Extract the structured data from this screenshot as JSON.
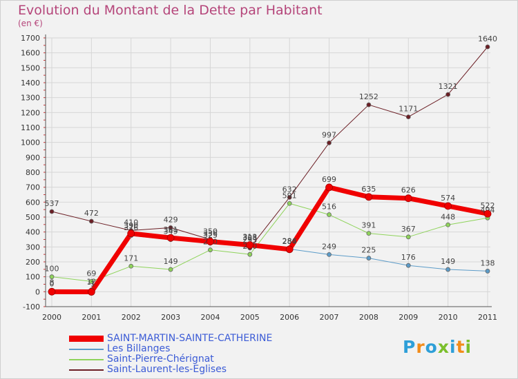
{
  "header": {
    "title": "Evolution du Montant de la Dette par Habitant",
    "unit": "(en €)"
  },
  "logo": {
    "text": "Proxiti",
    "letters": [
      "P",
      "r",
      "o",
      "x",
      "i",
      "t",
      "i"
    ],
    "colors": [
      "#2e9fd8",
      "#f28c1a",
      "#2e9fd8",
      "#7bbf2b",
      "#2e9fd8",
      "#f28c1a",
      "#7bbf2b"
    ]
  },
  "chart_data": {
    "type": "line",
    "title": "Evolution du Montant de la Dette par Habitant",
    "ylabel": "(en €)",
    "xlabel": "",
    "x": [
      "2000",
      "2001",
      "2002",
      "2003",
      "2004",
      "2005",
      "2006",
      "2007",
      "2008",
      "2009",
      "2010",
      "2011"
    ],
    "ylim": [
      -100,
      1700
    ],
    "yticks": [
      -100,
      0,
      100,
      200,
      300,
      400,
      500,
      600,
      700,
      800,
      900,
      1000,
      1100,
      1200,
      1300,
      1400,
      1500,
      1600,
      1700
    ],
    "grid": true,
    "legend_position": "bottom-left",
    "series": [
      {
        "name": "Saint-Laurent-les-Eglises",
        "color": "#6b1e24",
        "width": 1,
        "values": [
          537,
          472,
          410,
          429,
          350,
          293,
          632,
          997,
          1252,
          1171,
          1321,
          1640
        ],
        "labels": [
          "537",
          "472",
          "410",
          "429",
          "350",
          "293",
          "632",
          "997",
          "1252",
          "1171",
          "1321",
          "1640"
        ]
      },
      {
        "name": "Saint-Pierre-Chérignat",
        "color": "#8ed35a",
        "width": 1,
        "values": [
          100,
          69,
          171,
          149,
          280,
          250,
          591,
          516,
          391,
          367,
          448,
          494
        ],
        "labels": [
          "100",
          "69",
          "171",
          "149",
          "280",
          "250",
          "591",
          "516",
          "391",
          "367",
          "448",
          "494"
        ]
      },
      {
        "name": "Les Billanges",
        "color": "#5b9bc8",
        "width": 1,
        "values": [
          8,
          12,
          376,
          349,
          325,
          308,
          286,
          249,
          225,
          176,
          149,
          138
        ],
        "labels": [
          "8",
          "12",
          "376",
          "349",
          "325",
          "308",
          "286",
          "249",
          "225",
          "176",
          "149",
          "138"
        ]
      },
      {
        "name": "SAINT-MARTIN-SAINTE-CATHERINE",
        "color": "#f00000",
        "width": 7,
        "values": [
          0,
          -1,
          390,
          361,
          336,
          313,
          284,
          699,
          635,
          626,
          574,
          522
        ],
        "labels": [
          "0",
          "-1",
          "390",
          "361",
          "336",
          "313",
          "284",
          "699",
          "635",
          "626",
          "574",
          "522"
        ]
      }
    ]
  },
  "legend": {
    "items": [
      {
        "label": "SAINT-MARTIN-SAINTE-CATHERINE",
        "color": "#f00000"
      },
      {
        "label": "Les Billanges",
        "color": "#5b9bc8"
      },
      {
        "label": "Saint-Pierre-Chérignat",
        "color": "#8ed35a"
      },
      {
        "label": "Saint-Laurent-les-Eglises",
        "color": "#6b1e24"
      }
    ]
  }
}
